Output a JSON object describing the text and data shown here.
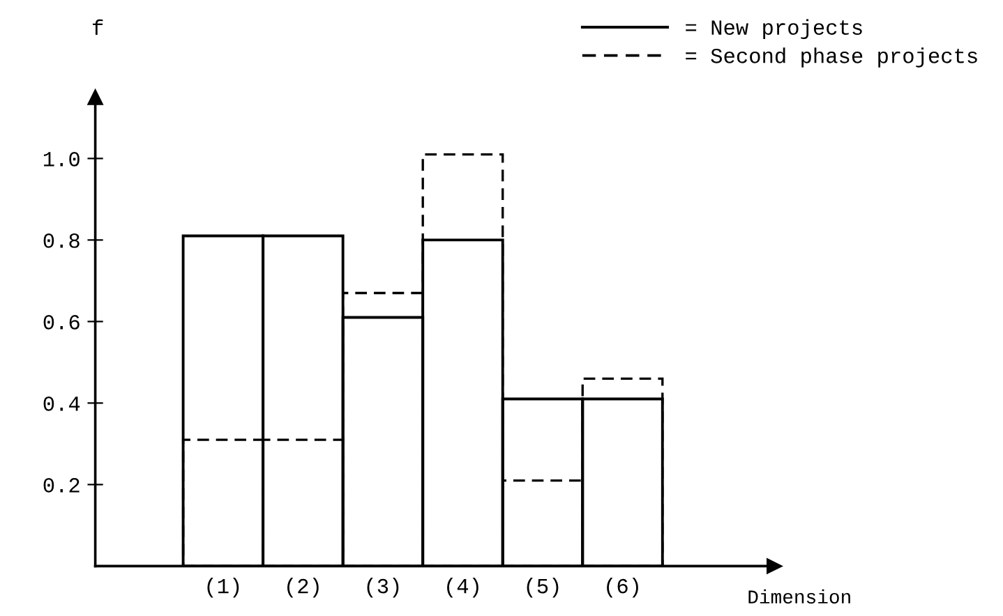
{
  "chart_data": {
    "type": "bar",
    "xlabel": "Dimension",
    "ylabel": "f",
    "categories": [
      "(1)",
      "(2)",
      "(3)",
      "(4)",
      "(5)",
      "(6)"
    ],
    "series": [
      {
        "name": "= New projects",
        "color": "#000000",
        "line_style": "solid",
        "values": [
          0.81,
          0.81,
          0.61,
          0.8,
          0.41,
          0.41
        ]
      },
      {
        "name": "= Second phase projects",
        "color": "#000000",
        "line_style": "dashed",
        "values": [
          0.31,
          0.31,
          0.67,
          1.01,
          0.21,
          0.46
        ]
      }
    ],
    "ylim": [
      0,
      1.15
    ],
    "yticks": [
      0.2,
      0.4,
      0.6,
      0.8,
      {
        "value": 1,
        "label": "1.0"
      }
    ],
    "grid": false,
    "legend": "top right"
  }
}
